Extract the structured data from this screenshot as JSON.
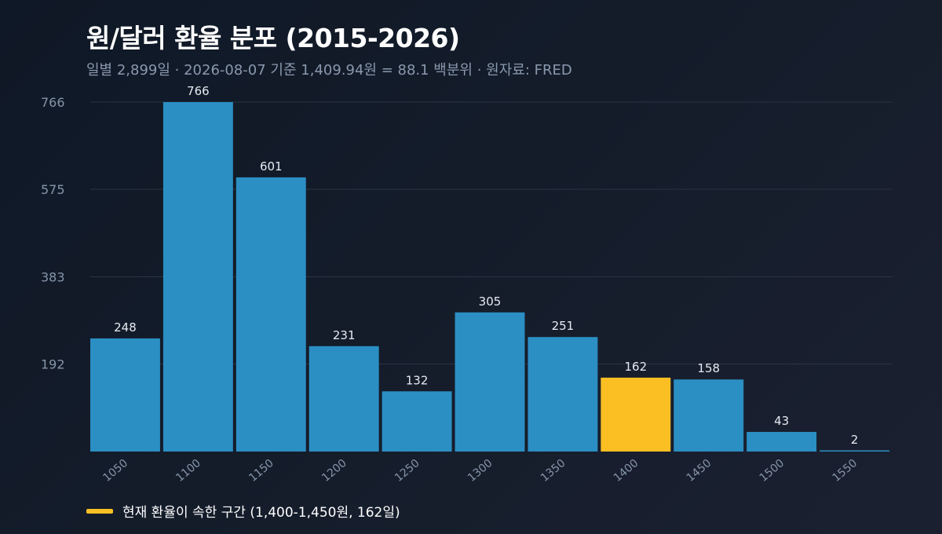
{
  "title": "원/달러 환율 분포 (2015-2026)",
  "subtitle": "일별 2,899일  ·  2026-08-07 기준 1,409.94원 = 88.1 백분위  ·  원자료: FRED",
  "legend": {
    "label": "현재 환율이 속한 구간 (1,400-1,450원, 162일)",
    "color": "#fbbf24"
  },
  "colors": {
    "bar": "#2b8fc4",
    "highlight": "#fbbf24",
    "grid": "#2a3444",
    "tick": "#8594a8",
    "value_label": "#e6ebf2"
  },
  "chart_data": {
    "type": "bar",
    "categories": [
      "1050",
      "1100",
      "1150",
      "1200",
      "1250",
      "1300",
      "1350",
      "1400",
      "1450",
      "1500",
      "1550"
    ],
    "values": [
      248,
      766,
      601,
      231,
      132,
      305,
      251,
      162,
      158,
      43,
      2
    ],
    "highlight_category": "1400",
    "yticks": [
      192,
      383,
      575,
      766
    ],
    "ylim": [
      0,
      766
    ],
    "grid": true,
    "legend_position": "bottom-left"
  }
}
